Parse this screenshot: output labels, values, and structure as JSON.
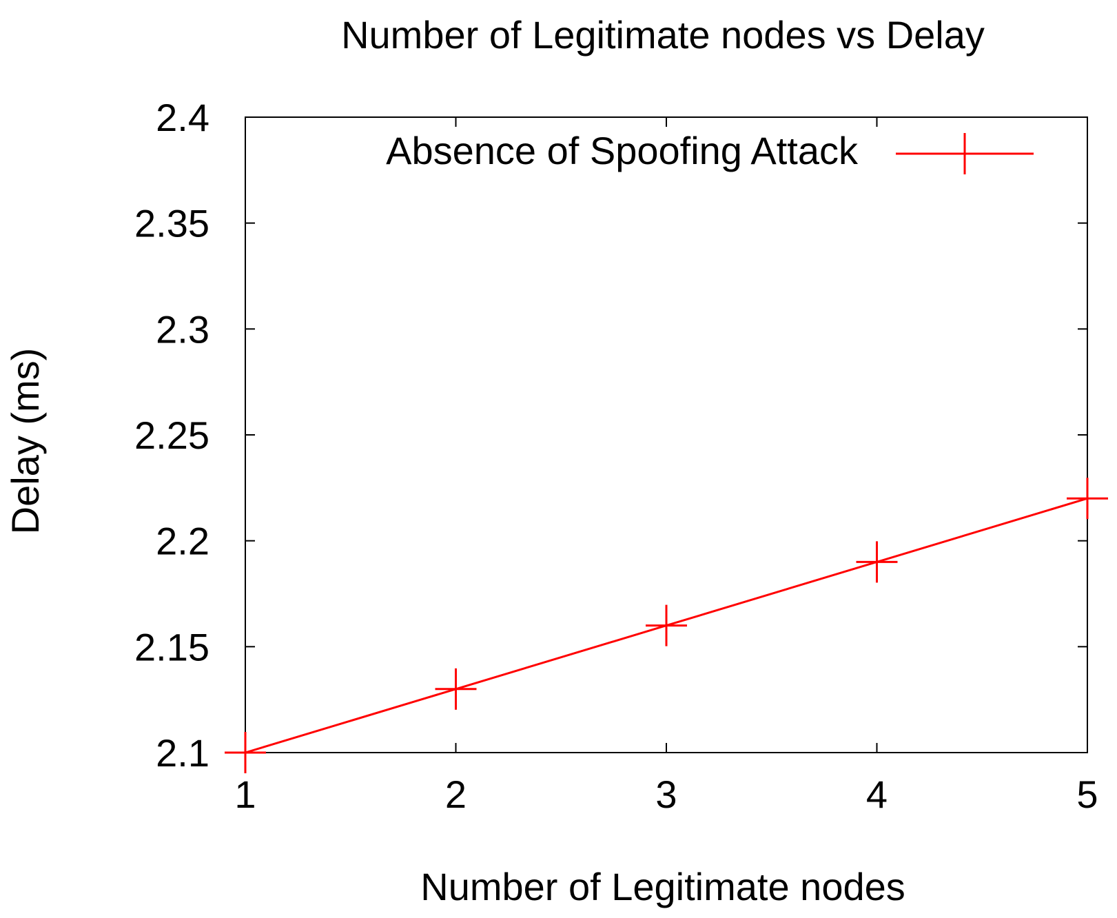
{
  "chart_data": {
    "type": "line",
    "title": "Number of Legitimate nodes vs Delay",
    "xlabel": "Number of Legitimate nodes",
    "ylabel": "Delay (ms)",
    "xlim": [
      1,
      5
    ],
    "ylim": [
      2.1,
      2.4
    ],
    "x_ticks": [
      "1",
      "2",
      "3",
      "4",
      "5"
    ],
    "y_ticks": [
      "2.1",
      "2.15",
      "2.2",
      "2.25",
      "2.3",
      "2.35",
      "2.4"
    ],
    "x": [
      1,
      2,
      3,
      4,
      5
    ],
    "series": [
      {
        "name": "Absence of Spoofing Attack",
        "values": [
          2.1,
          2.13,
          2.16,
          2.19,
          2.22
        ],
        "color": "#ff0000",
        "marker": "plus"
      }
    ],
    "legend_position": "top-right",
    "grid": false
  }
}
